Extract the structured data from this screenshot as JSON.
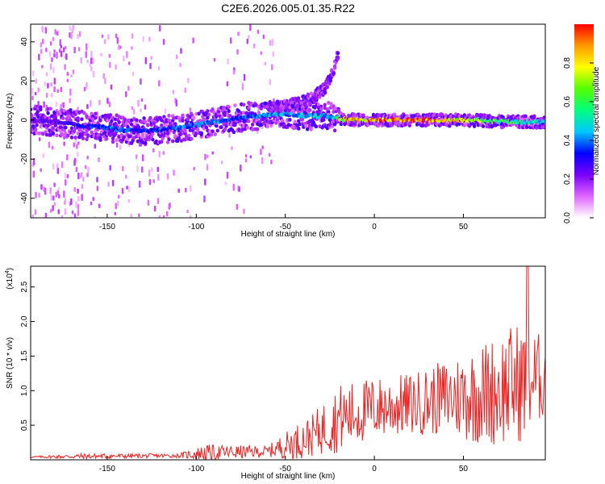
{
  "title": "C2E6.2026.005.01.35.R22",
  "chart_data": [
    {
      "type": "heatmap",
      "name": "spectrogram",
      "xlabel": "Height of straight line (km)",
      "ylabel": "Frequency (Hz)",
      "xlim": [
        -193,
        96
      ],
      "ylim": [
        -50,
        49
      ],
      "xticks": [
        -150,
        -100,
        -50,
        0,
        50
      ],
      "yticks": [
        -40,
        -20,
        0,
        20,
        40
      ],
      "colorbar": {
        "label": "Normalized spectral amplitude",
        "range": [
          0,
          1
        ],
        "ticks": [
          "0.0",
          "0.2",
          "0.4",
          "0.6",
          "0.8"
        ],
        "colors": [
          "#ffffff",
          "#e066ff",
          "#7a00ff",
          "#0000ff",
          "#00c8ff",
          "#00ff80",
          "#55ff00",
          "#ffff00",
          "#ff9900",
          "#ff0000"
        ]
      },
      "ridge": [
        {
          "x": -190,
          "f": 0,
          "amp": 0.25
        },
        {
          "x": -170,
          "f": -2,
          "amp": 0.3
        },
        {
          "x": -150,
          "f": -4,
          "amp": 0.4
        },
        {
          "x": -130,
          "f": -6,
          "amp": 0.35
        },
        {
          "x": -110,
          "f": -4,
          "amp": 0.4
        },
        {
          "x": -90,
          "f": -1,
          "amp": 0.45
        },
        {
          "x": -70,
          "f": 2,
          "amp": 0.4
        },
        {
          "x": -50,
          "f": 3,
          "amp": 0.45
        },
        {
          "x": -35,
          "f": 2,
          "amp": 0.5
        },
        {
          "x": -25,
          "f": 2,
          "amp": 0.45
        },
        {
          "x": -15,
          "f": 0,
          "amp": 0.85
        },
        {
          "x": 0,
          "f": 0,
          "amp": 0.95
        },
        {
          "x": 25,
          "f": 0,
          "amp": 1.0
        },
        {
          "x": 50,
          "f": 0,
          "amp": 0.8
        },
        {
          "x": 75,
          "f": -1,
          "amp": 0.6
        },
        {
          "x": 95,
          "f": -1,
          "amp": 0.5
        }
      ],
      "upper_branch": [
        {
          "x": -60,
          "f": 5
        },
        {
          "x": -45,
          "f": 8
        },
        {
          "x": -35,
          "f": 11
        },
        {
          "x": -28,
          "f": 16
        },
        {
          "x": -22,
          "f": 28
        },
        {
          "x": -20,
          "f": 35
        }
      ]
    },
    {
      "type": "line",
      "name": "snr",
      "xlabel": "Height of straight line (km)",
      "ylabel": "SNR (10 * v/v)",
      "scale_label": "(x10",
      "scale_exp": "4",
      "xlim": [
        -193,
        96
      ],
      "ylim": [
        0,
        2.8
      ],
      "xticks": [
        -150,
        -100,
        -50,
        0,
        50
      ],
      "yticks": [
        "0.5",
        "1.0",
        "1.5",
        "2.0",
        "2.5"
      ],
      "color": "#ee2222",
      "envelope": [
        {
          "x": -193,
          "mean": 0.04,
          "amp": 0.01
        },
        {
          "x": -165,
          "mean": 0.05,
          "amp": 0.04
        },
        {
          "x": -110,
          "mean": 0.06,
          "amp": 0.03
        },
        {
          "x": -95,
          "mean": 0.1,
          "amp": 0.12
        },
        {
          "x": -60,
          "mean": 0.12,
          "amp": 0.08
        },
        {
          "x": -45,
          "mean": 0.25,
          "amp": 0.25
        },
        {
          "x": -35,
          "mean": 0.35,
          "amp": 0.3
        },
        {
          "x": -20,
          "mean": 0.6,
          "amp": 0.5
        },
        {
          "x": 0,
          "mean": 0.75,
          "amp": 0.45
        },
        {
          "x": 20,
          "mean": 0.8,
          "amp": 0.45
        },
        {
          "x": 40,
          "mean": 0.9,
          "amp": 0.55
        },
        {
          "x": 60,
          "mean": 0.95,
          "amp": 0.75
        },
        {
          "x": 80,
          "mean": 1.1,
          "amp": 0.9
        },
        {
          "x": 96,
          "mean": 1.2,
          "amp": 0.6
        }
      ],
      "peak": {
        "x": 86,
        "y": 2.8
      }
    }
  ]
}
